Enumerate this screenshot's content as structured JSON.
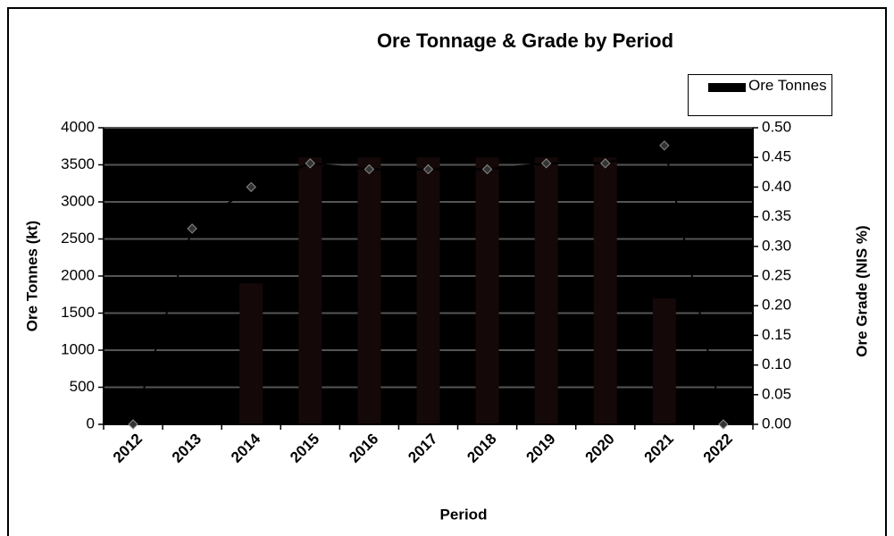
{
  "chart_data": {
    "type": "bar_line",
    "title": "Ore Tonnage & Grade by Period",
    "x_label": "Period",
    "y_label": "Ore Tonnes (kt)",
    "y2_label": "Ore Grade (NIS %)",
    "categories": [
      "2012",
      "2013",
      "2014",
      "2015",
      "2016",
      "2017",
      "2018",
      "2019",
      "2020",
      "2021",
      "2022"
    ],
    "series": [
      {
        "name": "Ore Tonnes",
        "type": "bar",
        "color": "#140808",
        "values": [
          0,
          0,
          1900,
          3600,
          3600,
          3600,
          3600,
          3600,
          3600,
          1700,
          0
        ]
      },
      {
        "type": "line",
        "axis": "y2",
        "color": "#000000",
        "values": [
          0,
          0.33,
          0.4,
          0.44,
          0.43,
          0.43,
          0.43,
          0.44,
          0.44,
          0.47,
          0
        ]
      }
    ],
    "ylim": [
      0,
      4000
    ],
    "yticks": [
      0,
      500,
      1000,
      1500,
      2000,
      2500,
      3000,
      3500,
      4000
    ],
    "y2lim": [
      0,
      0.5
    ],
    "y2ticks": [
      {
        "value": 0,
        "label": "0.00"
      },
      {
        "value": 0.05,
        "label": "0.05"
      },
      {
        "value": 0.1,
        "label": "0.10"
      },
      {
        "value": 0.15,
        "label": "0.15"
      },
      {
        "value": 0.2,
        "label": "0.20"
      },
      {
        "value": 0.25,
        "label": "0.25"
      },
      {
        "value": 0.3,
        "label": "0.30"
      },
      {
        "value": 0.35,
        "label": "0.35"
      },
      {
        "value": 0.4,
        "label": "0.40"
      },
      {
        "value": 0.45,
        "label": "0.45"
      },
      {
        "value": 0.5,
        "label": "0.50"
      }
    ],
    "grid": true,
    "plot_background": "#000000",
    "legend": "top-right"
  }
}
